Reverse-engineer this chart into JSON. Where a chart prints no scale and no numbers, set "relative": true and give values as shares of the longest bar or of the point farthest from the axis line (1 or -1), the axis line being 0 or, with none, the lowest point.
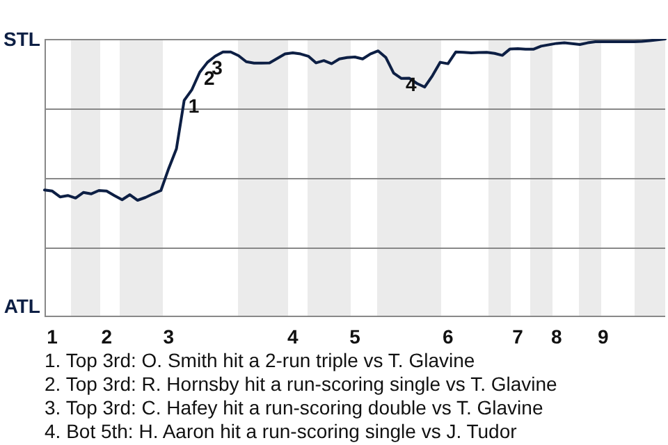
{
  "chart_data": {
    "type": "line",
    "relative": true,
    "categories": [
      null,
      "1",
      null,
      null,
      null,
      null,
      null,
      null,
      "2",
      null,
      null,
      null,
      null,
      null,
      null,
      null,
      "3",
      null,
      null,
      null,
      null,
      null,
      null,
      null,
      null,
      null,
      null,
      null,
      null,
      null,
      null,
      null,
      "4",
      null,
      null,
      null,
      null,
      null,
      null,
      null,
      "5",
      null,
      null,
      null,
      null,
      null,
      null,
      null,
      null,
      null,
      null,
      null,
      "6",
      null,
      null,
      null,
      null,
      null,
      null,
      null,
      null,
      "7",
      null,
      null,
      null,
      null,
      "8",
      null,
      null,
      null,
      null,
      null,
      "9",
      null,
      null,
      null,
      null,
      null,
      null,
      null,
      null
    ],
    "series": [
      {
        "color": "#0d1f44",
        "values": [
          0.457,
          0.453,
          0.432,
          0.437,
          0.428,
          0.448,
          0.443,
          0.455,
          0.453,
          0.437,
          0.422,
          0.44,
          0.42,
          0.43,
          0.443,
          0.455,
          0.534,
          0.605,
          0.779,
          0.818,
          0.88,
          0.916,
          0.938,
          0.953,
          0.953,
          0.94,
          0.918,
          0.913,
          0.913,
          0.914,
          0.93,
          0.946,
          0.95,
          0.946,
          0.938,
          0.914,
          0.922,
          0.911,
          0.928,
          0.933,
          0.935,
          0.928,
          0.946,
          0.957,
          0.933,
          0.877,
          0.858,
          0.859,
          0.84,
          0.827,
          0.868,
          0.916,
          0.911,
          0.953,
          0.952,
          0.95,
          0.951,
          0.952,
          0.948,
          0.941,
          0.964,
          0.965,
          0.963,
          0.963,
          0.974,
          0.979,
          0.984,
          0.986,
          0.983,
          0.98,
          0.986,
          0.99,
          0.99,
          0.99,
          0.99,
          0.99,
          0.99,
          0.991,
          0.994,
          0.997,
          1
        ],
        "name": null
      }
    ],
    "grid": false,
    "legend": false,
    "marker": "none",
    "line_style": "solid",
    "ref_lines": [
      {
        "axis": "y",
        "value": 0.25,
        "color": "#888888"
      },
      {
        "axis": "y",
        "value": 0.5,
        "color": "#888888"
      },
      {
        "axis": "y",
        "value": 0.75,
        "color": "#888888"
      },
      {
        "axis": "y",
        "value": 1,
        "color": "#888888"
      }
    ],
    "annotations": [
      "STL",
      "ATL",
      {
        "text": "1",
        "y": 0.779
      },
      {
        "text": "2",
        "y": 0.88
      },
      {
        "text": "3",
        "y": 0.916
      },
      {
        "text": "4",
        "y": 0.858
      },
      "1. Top 3rd: O. Smith hit a 2-run triple vs T. Glavine",
      "2. Top 3rd: R. Hornsby hit a run-scoring single vs T. Glavine",
      "3. Top 3rd: C. Hafey hit a run-scoring double vs T. Glavine",
      "4. Bot 5th: H. Aaron hit a run-scoring single vs J. Tudor"
    ]
  }
}
